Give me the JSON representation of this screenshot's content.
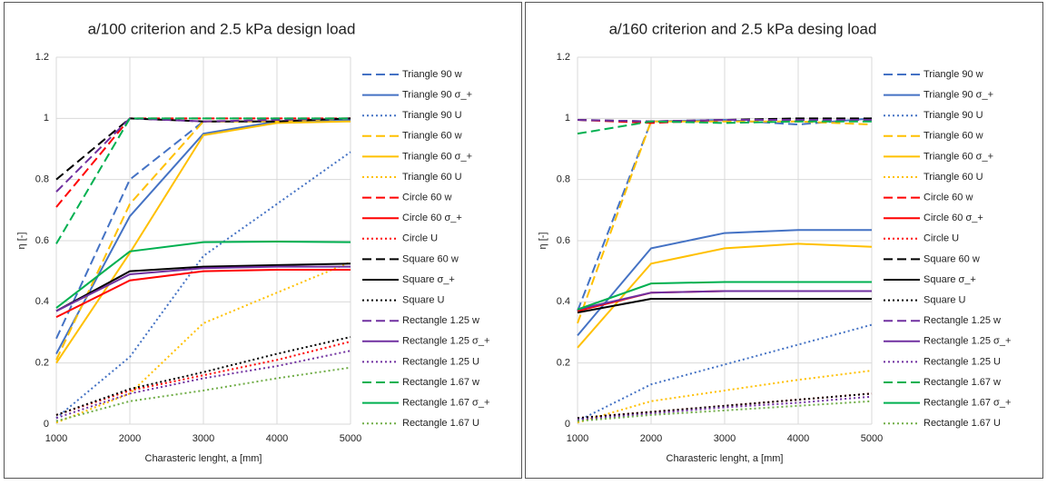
{
  "chart_data": [
    {
      "type": "line",
      "title": "a/100 criterion and 2.5 kPa design load",
      "x_label": "Charasteric lenght, a [mm]",
      "y_label": "η [-]",
      "x": [
        1000,
        2000,
        3000,
        4000,
        5000
      ],
      "xlim": [
        1000,
        5000
      ],
      "xticks": [
        1000,
        2000,
        3000,
        4000,
        5000
      ],
      "ylim": [
        0,
        1.2
      ],
      "yticks": [
        0,
        0.2,
        0.4,
        0.6,
        0.8,
        1,
        1.2
      ],
      "grid": true,
      "series": [
        {
          "name": "Triangle 90 w",
          "color": "#4472c4",
          "dash": "dash",
          "values": [
            0.28,
            0.8,
            0.99,
            0.99,
            1.0
          ]
        },
        {
          "name": "Triangle 90 σ_+",
          "color": "#4472c4",
          "dash": "solid",
          "values": [
            0.23,
            0.68,
            0.95,
            0.99,
            0.995
          ]
        },
        {
          "name": "Triangle 90 U",
          "color": "#4472c4",
          "dash": "dot",
          "values": [
            0.02,
            0.22,
            0.55,
            0.72,
            0.89
          ]
        },
        {
          "name": "Triangle 60 w",
          "color": "#ffc000",
          "dash": "dash",
          "values": [
            0.21,
            0.72,
            0.99,
            0.99,
            1.0
          ]
        },
        {
          "name": "Triangle 60 σ_+",
          "color": "#ffc000",
          "dash": "solid",
          "values": [
            0.2,
            0.56,
            0.945,
            0.985,
            0.99
          ]
        },
        {
          "name": "Triangle 60 U",
          "color": "#ffc000",
          "dash": "dot",
          "values": [
            0.005,
            0.1,
            0.33,
            0.43,
            0.53
          ]
        },
        {
          "name": "Circle 60 w",
          "color": "#ff0000",
          "dash": "dash",
          "values": [
            0.71,
            1.0,
            1.0,
            1.0,
            1.0
          ]
        },
        {
          "name": "Circle 60 σ_+",
          "color": "#ff0000",
          "dash": "solid",
          "values": [
            0.35,
            0.47,
            0.5,
            0.505,
            0.505
          ]
        },
        {
          "name": "Circle U",
          "color": "#ff0000",
          "dash": "dot",
          "values": [
            0.03,
            0.11,
            0.16,
            0.21,
            0.27
          ]
        },
        {
          "name": "Square 60 w",
          "color": "#000000",
          "dash": "dash",
          "values": [
            0.8,
            1.0,
            0.99,
            0.99,
            1.0
          ]
        },
        {
          "name": "Square σ_+",
          "color": "#000000",
          "dash": "solid",
          "values": [
            0.37,
            0.5,
            0.515,
            0.52,
            0.525
          ]
        },
        {
          "name": "Square U",
          "color": "#000000",
          "dash": "dot",
          "values": [
            0.03,
            0.115,
            0.17,
            0.23,
            0.285
          ]
        },
        {
          "name": "Rectangle 1.25 w",
          "color": "#7030a0",
          "dash": "dash",
          "values": [
            0.76,
            1.0,
            0.99,
            0.995,
            1.0
          ]
        },
        {
          "name": "Rectangle 1.25 σ_+",
          "color": "#7030a0",
          "dash": "solid",
          "values": [
            0.37,
            0.49,
            0.51,
            0.515,
            0.515
          ]
        },
        {
          "name": "Rectangle 1.25 U",
          "color": "#7030a0",
          "dash": "dot",
          "values": [
            0.02,
            0.1,
            0.15,
            0.19,
            0.24
          ]
        },
        {
          "name": "Rectangle 1.67 w",
          "color": "#00b050",
          "dash": "dash",
          "values": [
            0.59,
            1.0,
            1.0,
            1.0,
            1.0
          ]
        },
        {
          "name": "Rectangle 1.67 σ_+",
          "color": "#00b050",
          "dash": "solid",
          "values": [
            0.38,
            0.565,
            0.595,
            0.597,
            0.595
          ]
        },
        {
          "name": "Rectangle 1.67 U",
          "color": "#70ad47",
          "dash": "dot",
          "values": [
            0.01,
            0.075,
            0.11,
            0.15,
            0.185
          ]
        }
      ]
    },
    {
      "type": "line",
      "title": "a/160 criterion and 2.5 kPa desing load",
      "x_label": "Charasteric lenght, a [mm]",
      "y_label": "η [-]",
      "x": [
        1000,
        2000,
        3000,
        4000,
        5000
      ],
      "xlim": [
        1000,
        5000
      ],
      "xticks": [
        1000,
        2000,
        3000,
        4000,
        5000
      ],
      "ylim": [
        0,
        1.2
      ],
      "yticks": [
        0,
        0.2,
        0.4,
        0.6,
        0.8,
        1,
        1.2
      ],
      "grid": true,
      "series": [
        {
          "name": "Triangle 90 w",
          "color": "#4472c4",
          "dash": "dash",
          "values": [
            0.37,
            0.99,
            0.995,
            0.98,
            1.0
          ]
        },
        {
          "name": "Triangle 90 σ_+",
          "color": "#4472c4",
          "dash": "solid",
          "values": [
            0.29,
            0.575,
            0.625,
            0.635,
            0.635
          ]
        },
        {
          "name": "Triangle 90 U",
          "color": "#4472c4",
          "dash": "dot",
          "values": [
            0.01,
            0.13,
            0.195,
            0.26,
            0.325
          ]
        },
        {
          "name": "Triangle 60 w",
          "color": "#ffc000",
          "dash": "dash",
          "values": [
            0.33,
            0.99,
            0.99,
            0.99,
            0.98
          ]
        },
        {
          "name": "Triangle 60 σ_+",
          "color": "#ffc000",
          "dash": "solid",
          "values": [
            0.25,
            0.525,
            0.575,
            0.59,
            0.58
          ]
        },
        {
          "name": "Triangle 60 U",
          "color": "#ffc000",
          "dash": "dot",
          "values": [
            0.005,
            0.075,
            0.11,
            0.145,
            0.175
          ]
        },
        {
          "name": "Circle 60 w",
          "color": "#ff0000",
          "dash": "dash",
          "values": [
            0.995,
            0.985,
            0.995,
            0.995,
            0.995
          ]
        },
        {
          "name": "Circle 60 σ_+",
          "color": "#ff0000",
          "dash": "solid",
          "values": [
            0.37,
            0.43,
            0.435,
            0.435,
            0.435
          ]
        },
        {
          "name": "Circle U",
          "color": "#ff0000",
          "dash": "dot",
          "values": [
            0.02,
            0.04,
            0.06,
            0.08,
            0.1
          ]
        },
        {
          "name": "Square 60 w",
          "color": "#000000",
          "dash": "dash",
          "values": [
            0.995,
            0.99,
            0.995,
            1.0,
            1.0
          ]
        },
        {
          "name": "Square σ_+",
          "color": "#000000",
          "dash": "solid",
          "values": [
            0.365,
            0.41,
            0.41,
            0.41,
            0.41
          ]
        },
        {
          "name": "Square U",
          "color": "#000000",
          "dash": "dot",
          "values": [
            0.02,
            0.04,
            0.06,
            0.08,
            0.1
          ]
        },
        {
          "name": "Rectangle 1.25 w",
          "color": "#7030a0",
          "dash": "dash",
          "values": [
            0.995,
            0.99,
            0.995,
            0.995,
            0.995
          ]
        },
        {
          "name": "Rectangle 1.25 σ_+",
          "color": "#7030a0",
          "dash": "solid",
          "values": [
            0.375,
            0.43,
            0.435,
            0.435,
            0.435
          ]
        },
        {
          "name": "Rectangle 1.25 U",
          "color": "#7030a0",
          "dash": "dot",
          "values": [
            0.015,
            0.035,
            0.055,
            0.07,
            0.09
          ]
        },
        {
          "name": "Rectangle 1.67 w",
          "color": "#00b050",
          "dash": "dash",
          "values": [
            0.95,
            0.99,
            0.985,
            0.99,
            0.99
          ]
        },
        {
          "name": "Rectangle 1.67 σ_+",
          "color": "#00b050",
          "dash": "solid",
          "values": [
            0.375,
            0.46,
            0.465,
            0.465,
            0.465
          ]
        },
        {
          "name": "Rectangle 1.67 U",
          "color": "#70ad47",
          "dash": "dot",
          "values": [
            0.01,
            0.03,
            0.045,
            0.06,
            0.075
          ]
        }
      ]
    }
  ]
}
